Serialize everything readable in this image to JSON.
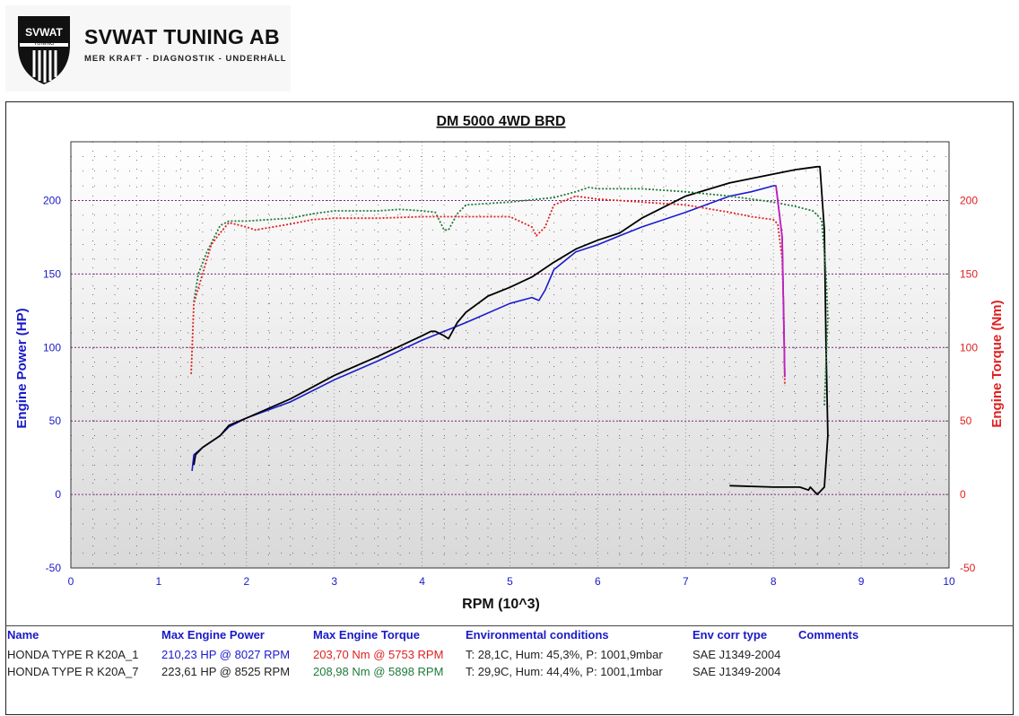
{
  "brand": {
    "name": "SVWAT TUNING AB",
    "tagline": "MER KRAFT - DIAGNOSTIK - UNDERHÅLL",
    "emblem_text": "SVWAT",
    "emblem_sub": "TUNING"
  },
  "chart_data": {
    "type": "line",
    "title": "DM 5000 4WD BRD",
    "xlabel": "RPM (10^3)",
    "ylabel_left": "Engine Power (HP)",
    "ylabel_right": "Engine Torque (Nm)",
    "xlim": [
      0,
      10
    ],
    "ylim": [
      -50,
      240
    ],
    "xticks": [
      "0",
      "1",
      "2",
      "3",
      "4",
      "5",
      "6",
      "7",
      "8",
      "9",
      "10"
    ],
    "yticks": [
      "-50",
      "0",
      "50",
      "100",
      "150",
      "200"
    ],
    "grid": true,
    "colors": {
      "power_1": "#1a1ad0",
      "torque_1": "#e02020",
      "power_2": "#000000",
      "torque_2": "#1e7a3a",
      "drop_1": "#c020c0",
      "axis_left": "#1a1ac8",
      "axis_right": "#e02020"
    },
    "series": [
      {
        "name": "HONDA TYPE R K20A_1",
        "quantity": "Engine Power (HP)",
        "points": [
          [
            1.38,
            16
          ],
          [
            1.4,
            27
          ],
          [
            1.5,
            32
          ],
          [
            1.7,
            40
          ],
          [
            1.8,
            46
          ],
          [
            2,
            52
          ],
          [
            2.5,
            63
          ],
          [
            3,
            78
          ],
          [
            3.5,
            91
          ],
          [
            4,
            105
          ],
          [
            4.5,
            117
          ],
          [
            5,
            130
          ],
          [
            5.25,
            134
          ],
          [
            5.33,
            132
          ],
          [
            5.4,
            139
          ],
          [
            5.5,
            153
          ],
          [
            5.75,
            165
          ],
          [
            6,
            170
          ],
          [
            6.25,
            176
          ],
          [
            6.5,
            182
          ],
          [
            7,
            192
          ],
          [
            7.5,
            203
          ],
          [
            7.75,
            206
          ],
          [
            8,
            210
          ],
          [
            8.03,
            210
          ],
          [
            8.1,
            175
          ],
          [
            8.13,
            80
          ]
        ]
      },
      {
        "name": "HONDA TYPE R K20A_1",
        "quantity": "Engine Torque (Nm)",
        "points": [
          [
            1.37,
            82
          ],
          [
            1.4,
            130
          ],
          [
            1.5,
            150
          ],
          [
            1.6,
            170
          ],
          [
            1.7,
            178
          ],
          [
            1.8,
            185
          ],
          [
            2,
            182
          ],
          [
            2.1,
            180
          ],
          [
            2.3,
            182
          ],
          [
            2.5,
            184
          ],
          [
            2.75,
            187
          ],
          [
            3,
            188
          ],
          [
            3.5,
            188
          ],
          [
            4,
            189
          ],
          [
            4.5,
            189
          ],
          [
            5,
            189
          ],
          [
            5.25,
            182
          ],
          [
            5.3,
            176
          ],
          [
            5.4,
            182
          ],
          [
            5.5,
            197
          ],
          [
            5.75,
            203
          ],
          [
            6,
            201
          ],
          [
            6.25,
            200
          ],
          [
            6.5,
            199
          ],
          [
            7,
            197
          ],
          [
            7.5,
            192
          ],
          [
            7.75,
            189
          ],
          [
            8,
            187
          ],
          [
            8.05,
            184
          ],
          [
            8.1,
            160
          ],
          [
            8.12,
            120
          ],
          [
            8.13,
            74
          ]
        ]
      },
      {
        "name": "HONDA TYPE R K20A_7",
        "quantity": "Engine Power (HP)",
        "points": [
          [
            1.4,
            20
          ],
          [
            1.42,
            27
          ],
          [
            1.5,
            32
          ],
          [
            1.7,
            40
          ],
          [
            1.8,
            47
          ],
          [
            2,
            52
          ],
          [
            2.5,
            65
          ],
          [
            3,
            81
          ],
          [
            3.5,
            94
          ],
          [
            4,
            108
          ],
          [
            4.1,
            111
          ],
          [
            4.15,
            111
          ],
          [
            4.25,
            108
          ],
          [
            4.3,
            106
          ],
          [
            4.4,
            117
          ],
          [
            4.5,
            124
          ],
          [
            4.75,
            135
          ],
          [
            5,
            141
          ],
          [
            5.25,
            148
          ],
          [
            5.5,
            158
          ],
          [
            5.75,
            167
          ],
          [
            6,
            173
          ],
          [
            6.25,
            178
          ],
          [
            6.5,
            188
          ],
          [
            7,
            203
          ],
          [
            7.5,
            212
          ],
          [
            8,
            218
          ],
          [
            8.25,
            221
          ],
          [
            8.5,
            223
          ],
          [
            8.53,
            223
          ],
          [
            8.58,
            180
          ],
          [
            8.6,
            100
          ],
          [
            8.62,
            40
          ],
          [
            8.58,
            5
          ],
          [
            8.5,
            0
          ],
          [
            8.42,
            5
          ],
          [
            8.4,
            3
          ],
          [
            8.3,
            5
          ],
          [
            8,
            5
          ],
          [
            7.5,
            6
          ]
        ]
      },
      {
        "name": "HONDA TYPE R K20A_7",
        "quantity": "Engine Torque (Nm)",
        "points": [
          [
            1.4,
            131
          ],
          [
            1.45,
            150
          ],
          [
            1.55,
            165
          ],
          [
            1.7,
            183
          ],
          [
            1.8,
            186
          ],
          [
            2,
            186
          ],
          [
            2.25,
            187
          ],
          [
            2.5,
            188
          ],
          [
            2.75,
            191
          ],
          [
            3,
            193
          ],
          [
            3.5,
            193
          ],
          [
            3.75,
            194
          ],
          [
            4,
            193
          ],
          [
            4.15,
            192
          ],
          [
            4.25,
            180
          ],
          [
            4.3,
            180
          ],
          [
            4.4,
            191
          ],
          [
            4.5,
            197
          ],
          [
            5,
            199
          ],
          [
            5.5,
            202
          ],
          [
            5.75,
            206
          ],
          [
            5.9,
            209
          ],
          [
            6,
            208
          ],
          [
            6.5,
            208
          ],
          [
            7,
            206
          ],
          [
            7.5,
            203
          ],
          [
            8,
            199
          ],
          [
            8.25,
            196
          ],
          [
            8.45,
            193
          ],
          [
            8.55,
            187
          ],
          [
            8.6,
            150
          ],
          [
            8.62,
            120
          ],
          [
            8.6,
            90
          ],
          [
            8.58,
            60
          ]
        ]
      }
    ]
  },
  "legend": {
    "headers": [
      "Name",
      "Max Engine Power",
      "Max Engine Torque",
      "Environmental conditions",
      "Env corr type",
      "Comments"
    ],
    "rows": [
      {
        "name": "HONDA TYPE R K20A_1",
        "power": "210,23 HP @ 8027 RPM",
        "torque": "203,70 Nm @ 5753 RPM",
        "env": "T: 28,1C, Hum: 45,3%, P: 1001,9mbar",
        "corr": "SAE J1349-2004",
        "comments": ""
      },
      {
        "name": "HONDA TYPE R K20A_7",
        "power": "223,61 HP @ 8525 RPM",
        "torque": "208,98 Nm @ 5898 RPM",
        "env": "T: 29,9C, Hum: 44,4%, P: 1001,1mbar",
        "corr": "SAE J1349-2004",
        "comments": ""
      }
    ]
  }
}
